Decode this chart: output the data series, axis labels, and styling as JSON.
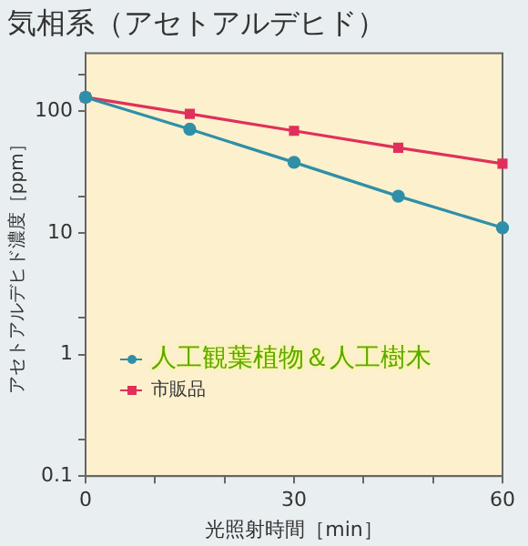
{
  "chart_data": {
    "type": "line",
    "title": "気相系（アセトアルデヒド）",
    "xlabel": "光照射時間［min］",
    "ylabel": "アセトアルデヒド濃度［ppm］",
    "x": [
      0,
      15,
      30,
      45,
      60
    ],
    "series": [
      {
        "name": "人工観葉植物＆人工樹木",
        "color": "#2f8fa8",
        "values": [
          130,
          71,
          38,
          20,
          11
        ]
      },
      {
        "name": "市販品",
        "color": "#e0305a",
        "values": [
          130,
          95,
          69,
          50,
          37
        ],
        "marker": "square"
      }
    ],
    "log": "y",
    "xlim": [
      0,
      60
    ],
    "xticks": [
      0,
      {
        "value": 10,
        "label": null
      },
      {
        "value": 20,
        "label": null
      },
      30,
      {
        "value": 40,
        "label": null
      },
      {
        "value": 50,
        "label": null
      },
      60
    ],
    "ylim": [
      0.1,
      300
    ],
    "yticks": [
      0.1,
      {
        "value": 0.2,
        "label": null
      },
      1,
      {
        "value": 2,
        "label": null
      },
      10,
      {
        "value": 20,
        "label": null
      },
      100,
      {
        "value": 200,
        "label": null
      }
    ],
    "grid": false,
    "legend": "left",
    "marker": "circle",
    "line_style": "solid"
  }
}
